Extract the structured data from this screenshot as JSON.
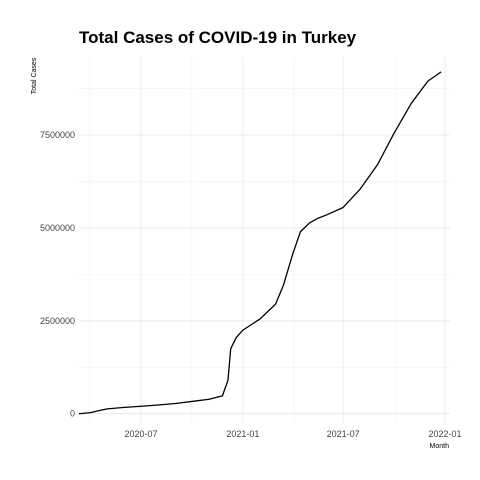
{
  "chart_data": {
    "type": "line",
    "title": "Total Cases of COVID-19 in Turkey",
    "xlabel": "Month",
    "ylabel": "Total Cases",
    "xlim": [
      "2020-03-11",
      "2022-01-10"
    ],
    "ylim": [
      -250000,
      9600000
    ],
    "x_ticks": [
      "2020-07-01",
      "2021-01-01",
      "2021-07-01",
      "2022-01-01"
    ],
    "x_tick_labels": [
      "2020-07",
      "2021-01",
      "2021-07",
      "2022-01"
    ],
    "y_ticks": [
      0,
      2500000,
      5000000,
      7500000
    ],
    "y_tick_labels": [
      "0",
      "2500000",
      "5000000",
      "7500000"
    ],
    "grid": true,
    "legend": "none",
    "series": [
      {
        "x": [
          "2020-03-11",
          "2020-04-01",
          "2020-04-15",
          "2020-05-01",
          "2020-06-01",
          "2020-07-01",
          "2020-08-01",
          "2020-09-01",
          "2020-10-01",
          "2020-11-01",
          "2020-11-25",
          "2020-12-05",
          "2020-12-10",
          "2020-12-20",
          "2021-01-01",
          "2021-02-01",
          "2021-03-01",
          "2021-03-15",
          "2021-04-01",
          "2021-04-15",
          "2021-05-01",
          "2021-05-15",
          "2021-06-01",
          "2021-07-01",
          "2021-08-01",
          "2021-09-01",
          "2021-10-01",
          "2021-11-01",
          "2021-12-01",
          "2021-12-25"
        ],
        "y": [
          0,
          30000,
          80000,
          130000,
          170000,
          200000,
          235000,
          275000,
          330000,
          390000,
          480000,
          900000,
          1750000,
          2050000,
          2250000,
          2550000,
          2950000,
          3450000,
          4300000,
          4900000,
          5130000,
          5250000,
          5350000,
          5550000,
          6050000,
          6700000,
          7550000,
          8350000,
          8950000,
          9200000
        ]
      }
    ]
  }
}
